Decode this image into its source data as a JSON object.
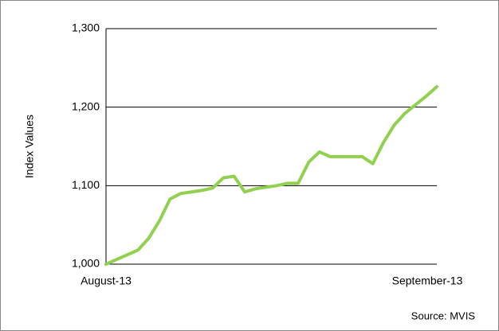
{
  "chart_data": {
    "type": "line",
    "y_label": "Index Values",
    "source": "Source: MVIS",
    "categories": [
      "August-13",
      null,
      null,
      null,
      null,
      null,
      null,
      null,
      null,
      null,
      null,
      null,
      null,
      null,
      null,
      null,
      null,
      null,
      null,
      null,
      null,
      null,
      null,
      null,
      null,
      null,
      null,
      null,
      null,
      null,
      null,
      "September-13"
    ],
    "series": [
      {
        "name": "Index",
        "color": "#92d050",
        "values": [
          1000,
          1006,
          1012,
          1018,
          1033,
          1055,
          1083,
          1090,
          1092,
          1094,
          1097,
          1110,
          1112,
          1092,
          1096,
          1098,
          1100,
          1103,
          1103,
          1130,
          1143,
          1137,
          1137,
          1137,
          1137,
          1128,
          1155,
          1177,
          1192,
          1203,
          1214,
          1226
        ]
      }
    ],
    "ylim": [
      1000,
      1300
    ],
    "yticks": [
      {
        "value": 1000,
        "label": "1,000"
      },
      {
        "value": 1100,
        "label": "1,100"
      },
      {
        "value": 1200,
        "label": "1,200"
      },
      {
        "value": 1300,
        "label": "1,300"
      }
    ],
    "grid": true
  }
}
